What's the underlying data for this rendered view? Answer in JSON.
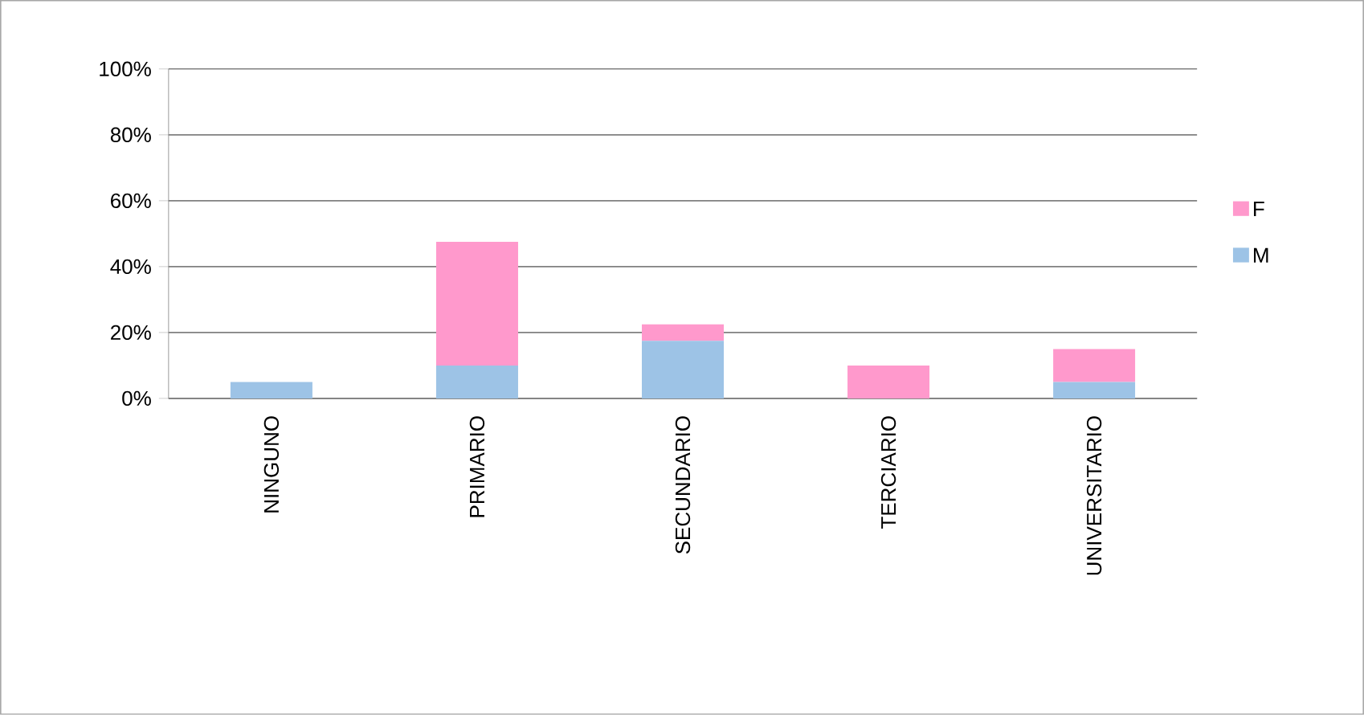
{
  "chart_data": {
    "type": "bar",
    "stacked": true,
    "categories": [
      "NINGUNO",
      "PRIMARIO",
      "SECUNDARIO",
      "TERCIARIO",
      "UNIVERSITARIO"
    ],
    "series": [
      {
        "name": "M",
        "color": "#9dc3e6",
        "values": [
          5,
          10,
          17.5,
          0,
          5
        ]
      },
      {
        "name": "F",
        "color": "#ff99cc",
        "values": [
          0,
          37.5,
          5,
          10,
          10
        ]
      }
    ],
    "ylim": [
      0,
      100
    ],
    "yticks": [
      {
        "value": 0,
        "label": "0%"
      },
      {
        "value": 20,
        "label": "20%"
      },
      {
        "value": 40,
        "label": "40%"
      },
      {
        "value": 60,
        "label": "60%"
      },
      {
        "value": 80,
        "label": "80%"
      },
      {
        "value": 100,
        "label": "100%"
      }
    ],
    "grid": "y",
    "legend": "right"
  }
}
